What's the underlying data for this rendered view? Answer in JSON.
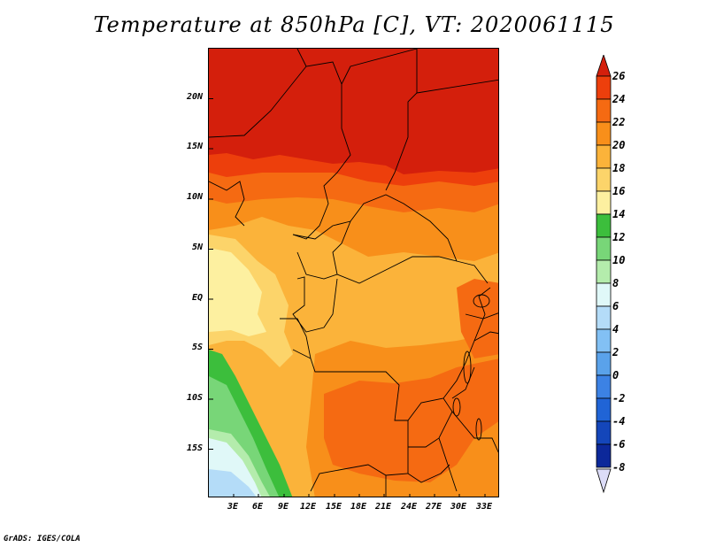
{
  "title": "Temperature at 850hPa [C], VT: 2020061115",
  "credit": "GrADS: IGES/COLA",
  "lat_labels": [
    "20N",
    "15N",
    "10N",
    "5N",
    "EQ",
    "5S",
    "10S",
    "15S"
  ],
  "lon_labels": [
    "3E",
    "6E",
    "9E",
    "12E",
    "15E",
    "18E",
    "21E",
    "24E",
    "27E",
    "30E",
    "33E"
  ],
  "colorbar": {
    "labels": [
      "26",
      "24",
      "22",
      "20",
      "18",
      "16",
      "14",
      "12",
      "10",
      "8",
      "6",
      "4",
      "2",
      "0",
      "-2",
      "-4",
      "-6",
      "-8"
    ],
    "colors": [
      "#d41f0c",
      "#ed3f0c",
      "#f56a12",
      "#f88f1a",
      "#fbb33a",
      "#fcd46a",
      "#fdf0a0",
      "#3cbe3c",
      "#78d678",
      "#b4ecac",
      "#e0f8f8",
      "#b4dcf8",
      "#82c0f4",
      "#5aa2ea",
      "#3c82e4",
      "#2064d6",
      "#1446ba",
      "#0c289a",
      "#000078"
    ],
    "over_color": "#d41f0c",
    "under_color": "#dcdcf8"
  },
  "map_colors": {
    "t26": "#d41f0c",
    "t24": "#ed3f0c",
    "t22": "#f56a12",
    "t20": "#f88f1a",
    "t18": "#fbb33a",
    "t16": "#fcd46a",
    "t14": "#fdf0a0",
    "t12": "#3cbe3c",
    "t10": "#78d678",
    "t8": "#b4ecac",
    "t6": "#e0f8f8",
    "t4": "#b4dcf8",
    "t2": "#82c0f4"
  }
}
